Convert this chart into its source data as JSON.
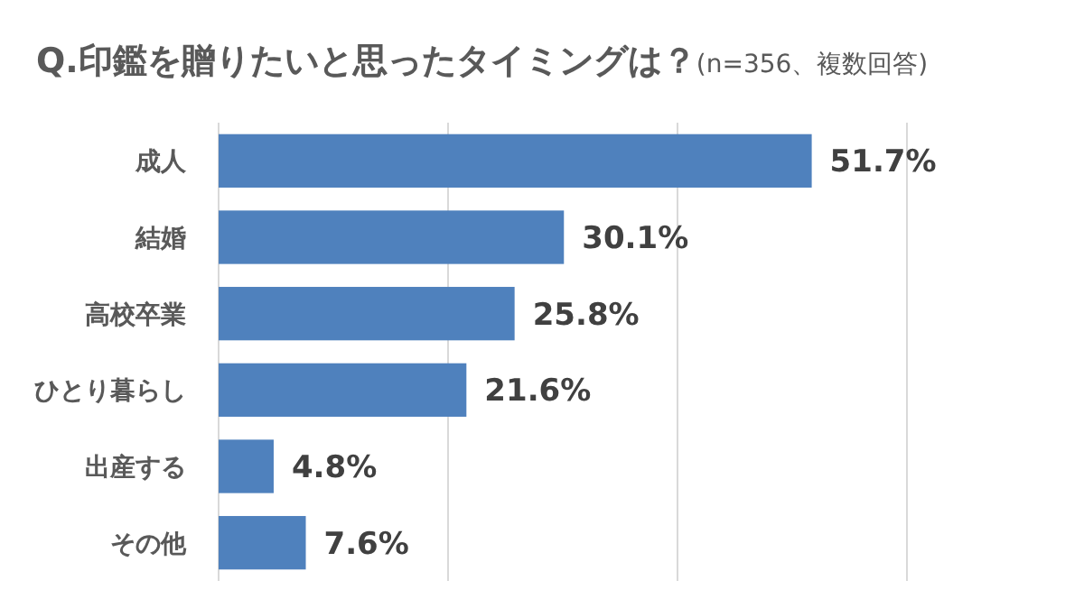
{
  "chart_data": {
    "type": "bar",
    "orientation": "horizontal",
    "title": "Q.印鑑を贈りたいと思ったタイミングは？",
    "subtitle": "(n=356、複数回答)",
    "categories": [
      "成人",
      "結婚",
      "高校卒業",
      "ひとり暮らし",
      "出産する",
      "その他"
    ],
    "values": [
      51.7,
      30.1,
      25.8,
      21.6,
      4.8,
      7.6
    ],
    "value_labels": [
      "51.7%",
      "30.1%",
      "25.8%",
      "21.6%",
      "4.8%",
      "7.6%"
    ],
    "color": "#4f81bd",
    "xlim": [
      0,
      60
    ],
    "xticks": [
      {
        "value": 0,
        "label": null
      },
      {
        "value": 20,
        "label": null
      },
      {
        "value": 40,
        "label": null
      },
      {
        "value": 60,
        "label": null
      }
    ],
    "grid": "x",
    "tick_labels": "y"
  }
}
